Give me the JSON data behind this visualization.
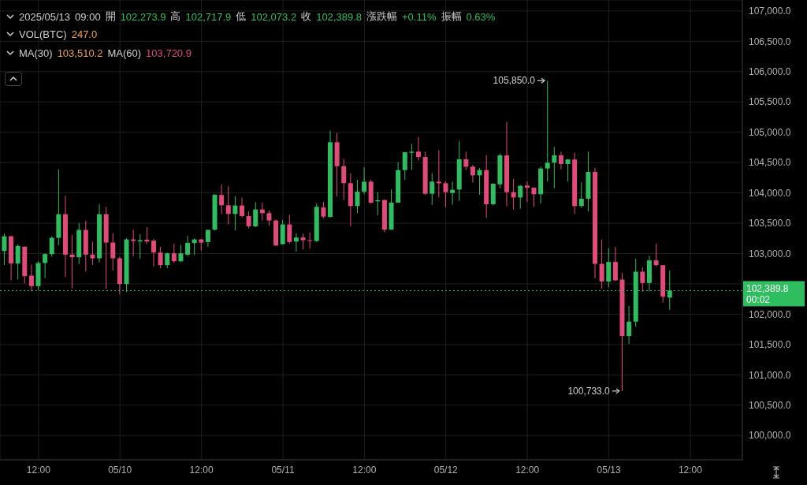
{
  "chart_data": {
    "type": "candlestick",
    "title": "2025/05/13 09:00 開 102,273.9 高 102,717.9 低 102,073.2 收 102,389.8 漲跌幅 +0.11% 振幅 0.63%",
    "subtitle": "VOL(BTC) 247.0",
    "annotations": [
      "MA(30) 103,510.2 MA(60) 103,720.9",
      {
        "text": "105,850.0",
        "x": "2025-05-12T15:00",
        "y": 105850
      },
      {
        "text": "100,733.0",
        "x": "2025-05-13T02:00",
        "y": 100733
      }
    ],
    "x": [
      "2025-05-09T07:00",
      "2025-05-09T08:00",
      "2025-05-09T09:00",
      "2025-05-09T10:00",
      "2025-05-09T11:00",
      "2025-05-09T12:00",
      "2025-05-09T13:00",
      "2025-05-09T14:00",
      "2025-05-09T15:00",
      "2025-05-09T16:00",
      "2025-05-09T17:00",
      "2025-05-09T18:00",
      "2025-05-09T19:00",
      "2025-05-09T20:00",
      "2025-05-09T21:00",
      "2025-05-09T22:00",
      "2025-05-09T23:00",
      "2025-05-10T00:00",
      "2025-05-10T01:00",
      "2025-05-10T02:00",
      "2025-05-10T03:00",
      "2025-05-10T04:00",
      "2025-05-10T05:00",
      "2025-05-10T06:00",
      "2025-05-10T07:00",
      "2025-05-10T08:00",
      "2025-05-10T09:00",
      "2025-05-10T10:00",
      "2025-05-10T11:00",
      "2025-05-10T12:00",
      "2025-05-10T13:00",
      "2025-05-10T14:00",
      "2025-05-10T15:00",
      "2025-05-10T16:00",
      "2025-05-10T17:00",
      "2025-05-10T18:00",
      "2025-05-10T19:00",
      "2025-05-10T20:00",
      "2025-05-10T21:00",
      "2025-05-10T22:00",
      "2025-05-10T23:00",
      "2025-05-11T00:00",
      "2025-05-11T01:00",
      "2025-05-11T02:00",
      "2025-05-11T03:00",
      "2025-05-11T04:00",
      "2025-05-11T05:00",
      "2025-05-11T06:00",
      "2025-05-11T07:00",
      "2025-05-11T08:00",
      "2025-05-11T09:00",
      "2025-05-11T10:00",
      "2025-05-11T11:00",
      "2025-05-11T12:00",
      "2025-05-11T13:00",
      "2025-05-11T14:00",
      "2025-05-11T15:00",
      "2025-05-11T16:00",
      "2025-05-11T17:00",
      "2025-05-11T18:00",
      "2025-05-11T19:00",
      "2025-05-11T20:00",
      "2025-05-11T21:00",
      "2025-05-11T22:00",
      "2025-05-11T23:00",
      "2025-05-12T00:00",
      "2025-05-12T01:00",
      "2025-05-12T02:00",
      "2025-05-12T03:00",
      "2025-05-12T04:00",
      "2025-05-12T05:00",
      "2025-05-12T06:00",
      "2025-05-12T07:00",
      "2025-05-12T08:00",
      "2025-05-12T09:00",
      "2025-05-12T10:00",
      "2025-05-12T11:00",
      "2025-05-12T12:00",
      "2025-05-12T13:00",
      "2025-05-12T14:00",
      "2025-05-12T15:00",
      "2025-05-12T16:00",
      "2025-05-12T17:00",
      "2025-05-12T18:00",
      "2025-05-12T19:00",
      "2025-05-12T20:00",
      "2025-05-12T21:00",
      "2025-05-12T22:00",
      "2025-05-12T23:00",
      "2025-05-13T00:00",
      "2025-05-13T01:00",
      "2025-05-13T02:00",
      "2025-05-13T03:00",
      "2025-05-13T04:00",
      "2025-05-13T05:00",
      "2025-05-13T06:00",
      "2025-05-13T07:00",
      "2025-05-13T08:00",
      "2025-05-13T09:00"
    ],
    "ohlc": [
      [
        103043,
        103330,
        102810,
        103285
      ],
      [
        103285,
        103294,
        102558,
        102835
      ],
      [
        102835,
        103155,
        102571,
        103125
      ],
      [
        103113,
        103120,
        102506,
        102627
      ],
      [
        102636,
        102818,
        102376,
        102463
      ],
      [
        102463,
        102874,
        102398,
        102844
      ],
      [
        102844,
        103004,
        102592,
        102991
      ],
      [
        102991,
        103285,
        102948,
        103259
      ],
      [
        103259,
        104389,
        103134,
        103649
      ],
      [
        103649,
        103956,
        102614,
        102982
      ],
      [
        102982,
        103307,
        102428,
        102939
      ],
      [
        102939,
        103502,
        102826,
        103389
      ],
      [
        103389,
        103545,
        102701,
        102982
      ],
      [
        102982,
        103190,
        102818,
        102922
      ],
      [
        102922,
        103813,
        102852,
        103649
      ],
      [
        103649,
        103770,
        102419,
        103181
      ],
      [
        103181,
        103337,
        102722,
        102922
      ],
      [
        102922,
        102948,
        102324,
        102497
      ],
      [
        102497,
        103251,
        102367,
        103233
      ],
      [
        103233,
        103393,
        102952,
        103207
      ],
      [
        103199,
        103320,
        102913,
        103220
      ],
      [
        103229,
        103437,
        103164,
        103199
      ],
      [
        103212,
        103242,
        102787,
        103017
      ],
      [
        103017,
        103112,
        102757,
        102809
      ],
      [
        102809,
        103013,
        102757,
        103004
      ],
      [
        103004,
        103164,
        102844,
        102874
      ],
      [
        102873,
        103142,
        102860,
        103003
      ],
      [
        102982,
        103293,
        102951,
        103177
      ],
      [
        103172,
        103250,
        102973,
        103233
      ],
      [
        103233,
        103242,
        103047,
        103181
      ],
      [
        103190,
        103393,
        103112,
        103389
      ],
      [
        103393,
        103978,
        103380,
        103969
      ],
      [
        103965,
        104142,
        103653,
        103796
      ],
      [
        103796,
        104116,
        103480,
        103653
      ],
      [
        103653,
        103943,
        103380,
        103792
      ],
      [
        103792,
        103921,
        103597,
        103618
      ],
      [
        103618,
        103696,
        103415,
        103449
      ],
      [
        103449,
        103848,
        103436,
        103727
      ],
      [
        103727,
        103839,
        103545,
        103666
      ],
      [
        103666,
        103709,
        103458,
        103545
      ],
      [
        103545,
        103562,
        103120,
        103133
      ],
      [
        103155,
        103553,
        103146,
        103480
      ],
      [
        103480,
        103640,
        103164,
        103190
      ],
      [
        103198,
        103337,
        103034,
        103263
      ],
      [
        103263,
        103328,
        103068,
        103220
      ],
      [
        103220,
        103345,
        103081,
        103211
      ],
      [
        103207,
        103826,
        103190,
        103770
      ],
      [
        103761,
        103856,
        103579,
        103610
      ],
      [
        103605,
        105026,
        103588,
        104835
      ],
      [
        104835,
        104987,
        103943,
        104441
      ],
      [
        104441,
        104562,
        103882,
        104160
      ],
      [
        104160,
        104324,
        103450,
        103783
      ],
      [
        103783,
        104216,
        103666,
        104021
      ],
      [
        104021,
        104423,
        103977,
        104185
      ],
      [
        104185,
        104216,
        103826,
        103839
      ],
      [
        103861,
        104012,
        103631,
        103878
      ],
      [
        103882,
        103891,
        103350,
        103393
      ],
      [
        103393,
        104055,
        103393,
        103839
      ],
      [
        103839,
        104506,
        103839,
        104376
      ],
      [
        104376,
        104670,
        104216,
        104670
      ],
      [
        104662,
        104809,
        104376,
        104679
      ],
      [
        104679,
        104921,
        104532,
        104592
      ],
      [
        104592,
        104679,
        103969,
        103986
      ],
      [
        103986,
        104324,
        103804,
        104185
      ],
      [
        104185,
        104705,
        103926,
        104159
      ],
      [
        104159,
        104194,
        103761,
        104012
      ],
      [
        103999,
        104185,
        103804,
        104051
      ],
      [
        104055,
        104852,
        103869,
        104553
      ],
      [
        104553,
        104679,
        104376,
        104432
      ],
      [
        104432,
        104462,
        104172,
        104289
      ],
      [
        104289,
        104410,
        103969,
        104376
      ],
      [
        104376,
        104618,
        103588,
        103813
      ],
      [
        103813,
        104159,
        103796,
        104151
      ],
      [
        104142,
        104649,
        104077,
        104618
      ],
      [
        104618,
        105168,
        103783,
        104012
      ],
      [
        104012,
        104229,
        103726,
        103925
      ],
      [
        103925,
        104129,
        103739,
        104116
      ],
      [
        104121,
        104186,
        103848,
        104086
      ],
      [
        104086,
        104086,
        103770,
        103978
      ],
      [
        103978,
        104432,
        103826,
        104402
      ],
      [
        104402,
        105850,
        104186,
        104498
      ],
      [
        104498,
        104757,
        104077,
        104619
      ],
      [
        104619,
        104679,
        104389,
        104476
      ],
      [
        104476,
        104562,
        104186,
        104550
      ],
      [
        104550,
        104662,
        103653,
        103783
      ],
      [
        103783,
        104173,
        103753,
        103904
      ],
      [
        103904,
        104679,
        103696,
        104346
      ],
      [
        104346,
        104411,
        102592,
        102830
      ],
      [
        102830,
        103233,
        102419,
        102540
      ],
      [
        102540,
        103090,
        102441,
        102861
      ],
      [
        102861,
        103112,
        102549,
        102558
      ],
      [
        102571,
        102679,
        100733,
        101640
      ],
      [
        101640,
        102138,
        101510,
        101878
      ],
      [
        101878,
        102917,
        101791,
        102701
      ],
      [
        102701,
        102774,
        102367,
        102514
      ],
      [
        102514,
        102960,
        102376,
        102887
      ],
      [
        102887,
        103164,
        102787,
        102809
      ],
      [
        102809,
        102809,
        102194,
        102289
      ],
      [
        102273.9,
        102717.9,
        102073.2,
        102389.8
      ]
    ],
    "colors": [
      "#2ebd5f",
      "#e04b7a",
      "#2ebd5f",
      "#e04b7a",
      "#e04b7a",
      "#2ebd5f",
      "#2ebd5f",
      "#2ebd5f",
      "#2ebd5f",
      "#e04b7a",
      "#e04b7a",
      "#2ebd5f",
      "#e04b7a",
      "#e04b7a",
      "#2ebd5f",
      "#e04b7a",
      "#e04b7a",
      "#e04b7a",
      "#2ebd5f",
      "#e04b7a",
      "#2ebd5f",
      "#e04b7a",
      "#e04b7a",
      "#e04b7a",
      "#2ebd5f",
      "#e04b7a",
      "#2ebd5f",
      "#2ebd5f",
      "#2ebd5f",
      "#e04b7a",
      "#2ebd5f",
      "#2ebd5f",
      "#e04b7a",
      "#e04b7a",
      "#2ebd5f",
      "#e04b7a",
      "#e04b7a",
      "#2ebd5f",
      "#e04b7a",
      "#e04b7a",
      "#e04b7a",
      "#2ebd5f",
      "#e04b7a",
      "#2ebd5f",
      "#e04b7a",
      "#e04b7a",
      "#2ebd5f",
      "#e04b7a",
      "#2ebd5f",
      "#e04b7a",
      "#e04b7a",
      "#e04b7a",
      "#2ebd5f",
      "#2ebd5f",
      "#e04b7a",
      "#2ebd5f",
      "#e04b7a",
      "#2ebd5f",
      "#2ebd5f",
      "#2ebd5f",
      "#2ebd5f",
      "#e04b7a",
      "#e04b7a",
      "#2ebd5f",
      "#e04b7a",
      "#e04b7a",
      "#2ebd5f",
      "#2ebd5f",
      "#e04b7a",
      "#e04b7a",
      "#2ebd5f",
      "#e04b7a",
      "#2ebd5f",
      "#2ebd5f",
      "#e04b7a",
      "#e04b7a",
      "#2ebd5f",
      "#e04b7a",
      "#e04b7a",
      "#2ebd5f",
      "#2ebd5f",
      "#2ebd5f",
      "#e04b7a",
      "#2ebd5f",
      "#e04b7a",
      "#2ebd5f",
      "#2ebd5f",
      "#e04b7a",
      "#e04b7a",
      "#2ebd5f",
      "#e04b7a",
      "#e04b7a",
      "#2ebd5f",
      "#2ebd5f",
      "#e04b7a",
      "#2ebd5f",
      "#e04b7a",
      "#e04b7a",
      "#2ebd5f"
    ],
    "xlim": [
      "2025-05-09T06:20",
      "2025-05-13T19:40"
    ],
    "xticks": [
      {
        "value": "2025-05-09T12:00",
        "label": "12:00"
      },
      {
        "value": "2025-05-10",
        "label": "05/10"
      },
      {
        "value": "2025-05-10T12:00",
        "label": "12:00"
      },
      {
        "value": "2025-05-11",
        "label": "05/11"
      },
      {
        "value": "2025-05-11T12:00",
        "label": "12:00"
      },
      {
        "value": "2025-05-12",
        "label": "05/12"
      },
      {
        "value": "2025-05-12T12:00",
        "label": "12:00"
      },
      {
        "value": "2025-05-13",
        "label": "05/13"
      },
      {
        "value": "2025-05-13T12:00",
        "label": "12:00"
      }
    ],
    "ylim": [
      99600,
      107180
    ],
    "yticks": [
      {
        "value": 100000,
        "label": "100,000.0"
      },
      {
        "value": 100500,
        "label": "100,500.0"
      },
      {
        "value": 101000,
        "label": "101,000.0"
      },
      {
        "value": 101500,
        "label": "101,500.0"
      },
      {
        "value": 102000,
        "label": "102,000.0"
      },
      {
        "value": 102500,
        "label": null
      },
      {
        "value": 103000,
        "label": "103,000.0"
      },
      {
        "value": 103500,
        "label": "103,500.0"
      },
      {
        "value": 104000,
        "label": "104,000.0"
      },
      {
        "value": 104500,
        "label": "104,500.0"
      },
      {
        "value": 105000,
        "label": "105,000.0"
      },
      {
        "value": 105500,
        "label": "105,500.0"
      },
      {
        "value": 106000,
        "label": "106,000.0"
      },
      {
        "value": 106500,
        "label": "106,500.0"
      },
      {
        "value": 107000,
        "label": "107,000.0"
      }
    ],
    "ref_lines": [
      {
        "axis": "y",
        "value": 102389.8,
        "label": "102,389.8\n00:02",
        "color": "#2ebd5f",
        "line_style": "dotted"
      }
    ],
    "grid": true
  }
}
